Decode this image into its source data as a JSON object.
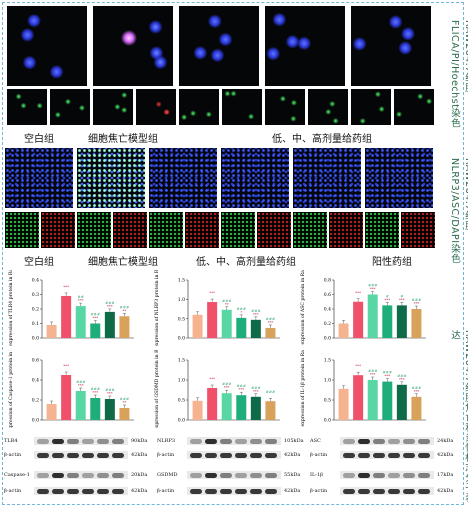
{
  "side_labels": {
    "s1": "RAW264.7细胞 FLICA/PI/Hoechst染色",
    "s2": "RAW264.7细胞 NLRP3/ASC/DAPI染色",
    "s3": "RAW264.7细胞焦亡和炎性标志分子表达"
  },
  "captions": {
    "r1": [
      "空白组",
      "细胞焦亡模型组",
      "低、中、高剂量给药组"
    ],
    "r2": [
      "空白组",
      "细胞焦亡模型组",
      "低、中、高剂量给药组",
      "阳性药组"
    ]
  },
  "colors": {
    "blank": "#f6b38f",
    "model": "#f0506a",
    "low": "#58d6a4",
    "mid": "#1eae7c",
    "high": "#0e6a47",
    "positive": "#d9a25b"
  },
  "chart_data": [
    {
      "type": "bar",
      "ylabel": "Relative expression of TLR4 protein in Raw264.7",
      "ylim": [
        0,
        0.4
      ],
      "yticks": [
        "0.0",
        "0.1",
        "0.2",
        "0.3",
        "0.4"
      ],
      "values": [
        0.09,
        0.29,
        0.22,
        0.1,
        0.18,
        0.15
      ],
      "labels": [
        [
          "",
          ""
        ],
        [
          "***",
          ""
        ],
        [
          "##",
          "***"
        ],
        [
          "###",
          "***"
        ],
        [
          "###",
          "***"
        ],
        [
          "###",
          "**"
        ]
      ]
    },
    {
      "type": "bar",
      "ylabel": "Relative expression of NLRP3 protein in Raw264.7",
      "ylim": [
        0,
        1.5
      ],
      "yticks": [
        "0.0",
        "0.5",
        "1.0",
        "1.5"
      ],
      "values": [
        0.6,
        0.93,
        0.73,
        0.52,
        0.47,
        0.26
      ],
      "labels": [
        [
          "",
          ""
        ],
        [
          "***",
          ""
        ],
        [
          "###",
          "**"
        ],
        [
          "###",
          "*"
        ],
        [
          "###",
          "***"
        ],
        [
          "###",
          "***"
        ]
      ]
    },
    {
      "type": "bar",
      "ylabel": "Relative expression of ASC protein in Raw264.7",
      "ylim": [
        0,
        0.8
      ],
      "yticks": [
        "0.0",
        "0.2",
        "0.4",
        "0.6",
        "0.8"
      ],
      "values": [
        0.2,
        0.5,
        0.6,
        0.45,
        0.45,
        0.4
      ],
      "labels": [
        [
          "",
          ""
        ],
        [
          "***",
          ""
        ],
        [
          "###",
          "***"
        ],
        [
          "#",
          "***"
        ],
        [
          "#",
          "***"
        ],
        [
          "###",
          "***"
        ]
      ]
    },
    {
      "type": "bar",
      "ylabel": "Relative expression of Caspase-1 protein in Raw264.7",
      "ylim": [
        0,
        0.6
      ],
      "yticks": [
        "0.0",
        "0.2",
        "0.4",
        "0.6"
      ],
      "values": [
        0.16,
        0.45,
        0.29,
        0.22,
        0.21,
        0.12
      ],
      "labels": [
        [
          "",
          ""
        ],
        [
          "***",
          ""
        ],
        [
          "###",
          "***"
        ],
        [
          "###",
          "***"
        ],
        [
          "###",
          "***"
        ],
        [
          "###",
          "**"
        ]
      ]
    },
    {
      "type": "bar",
      "ylabel": "Relative expression of GSDMD protein in Raw264.7",
      "ylim": [
        0,
        1.5
      ],
      "yticks": [
        "0.0",
        "0.5",
        "1.0",
        "1.5"
      ],
      "values": [
        0.48,
        0.8,
        0.67,
        0.62,
        0.58,
        0.47
      ],
      "labels": [
        [
          "",
          ""
        ],
        [
          "***",
          ""
        ],
        [
          "###",
          "***"
        ],
        [
          "###",
          "***"
        ],
        [
          "###",
          "***"
        ],
        [
          "###",
          ""
        ]
      ]
    },
    {
      "type": "bar",
      "ylabel": "Relative expression of IL-1β protein in Raw264.7",
      "ylim": [
        0,
        1.5
      ],
      "yticks": [
        "0.0",
        "0.5",
        "1.0",
        "1.5"
      ],
      "values": [
        0.78,
        1.12,
        1.0,
        0.96,
        0.88,
        0.58
      ],
      "labels": [
        [
          "",
          ""
        ],
        [
          "***",
          ""
        ],
        [
          "###",
          "***"
        ],
        [
          "###",
          "***"
        ],
        [
          "###",
          "***"
        ],
        [
          "###",
          "***"
        ]
      ]
    }
  ],
  "blots": [
    {
      "name": "TLR4",
      "kda": "90kDa"
    },
    {
      "name": "β-actin",
      "kda": "42kDa"
    },
    {
      "name": "Caspase-1",
      "kda": "20kDa"
    },
    {
      "name": "β-actin",
      "kda": "42kDa"
    },
    {
      "name": "NLRP3",
      "kda": "105kDa"
    },
    {
      "name": "β-actin",
      "kda": "42kDa"
    },
    {
      "name": "GSDMD",
      "kda": "55kDa"
    },
    {
      "name": "β-actin",
      "kda": "42kDa"
    },
    {
      "name": "ASC",
      "kda": "24kDa"
    },
    {
      "name": "β-actin",
      "kda": "42kDa"
    },
    {
      "name": "IL-1β",
      "kda": "17kDa"
    },
    {
      "name": "β-actin",
      "kda": "42kDa"
    }
  ]
}
